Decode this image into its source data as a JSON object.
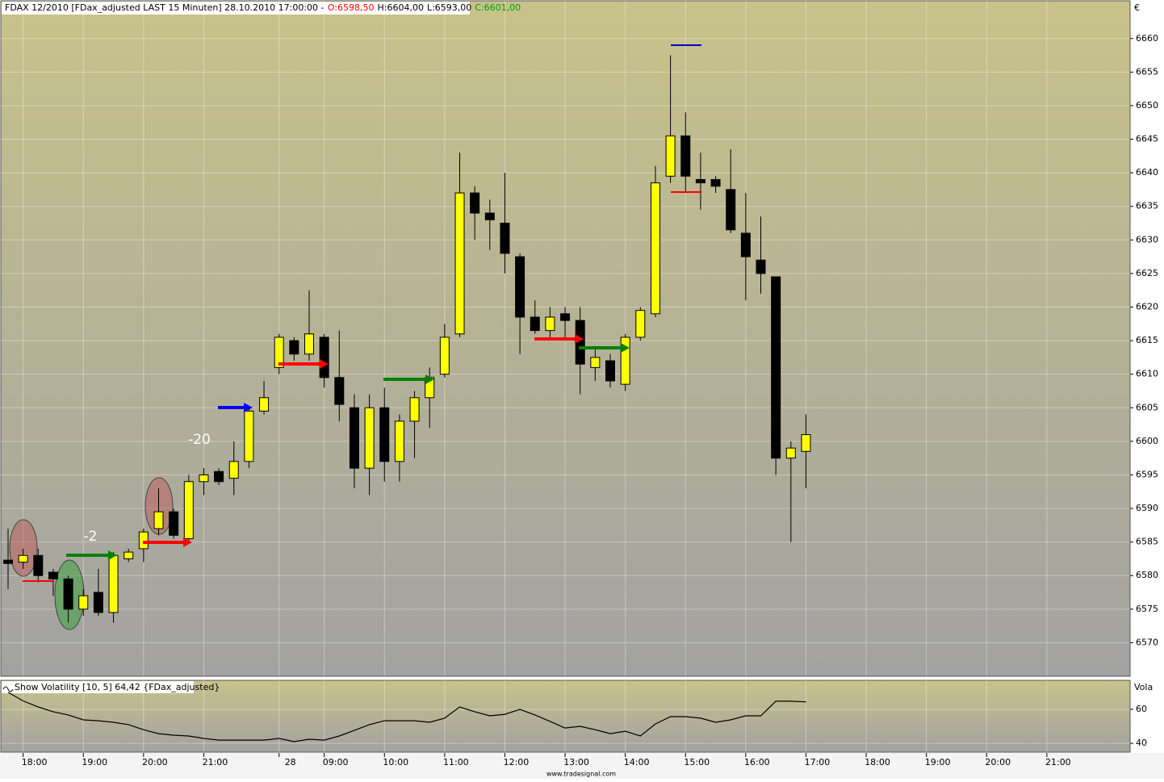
{
  "chart_data": [
    {
      "type": "candlestick",
      "title_parts": [
        "FDAX 12/2010 [FDax_adjusted LAST 15 Minuten] 28.10.2010 17:00:00 -",
        "O:6598,50",
        "H:6604,00",
        "L:6593,00",
        "C:6601,00"
      ],
      "title_colors": [
        "#000000",
        "#ff0000",
        "#000000",
        "#000000",
        "#00a000"
      ],
      "currency": "€",
      "categories": [
        null,
        "18:00",
        null,
        null,
        null,
        "19:00",
        null,
        null,
        null,
        "20:00",
        null,
        null,
        null,
        "21:00",
        null,
        null,
        null,
        null,
        "28",
        null,
        null,
        "09:00",
        null,
        null,
        null,
        "10:00",
        null,
        null,
        null,
        "11:00",
        null,
        null,
        null,
        "12:00",
        null,
        null,
        null,
        "13:00",
        null,
        null,
        null,
        "14:00",
        null,
        null,
        null,
        "15:00",
        null,
        null,
        null,
        "16:00",
        null,
        null,
        null,
        "17:00",
        null,
        null,
        null,
        "18:00",
        null,
        null,
        null,
        "19:00",
        null,
        null,
        null,
        "20:00",
        null,
        null,
        null,
        "21:00",
        null,
        null,
        null,
        null
      ],
      "open": [
        6582.3,
        6582,
        6583,
        6580.5,
        6579.5,
        6575,
        6577.5,
        6574.5,
        6582.5,
        6584,
        6587,
        6589.5,
        6585.5,
        6594,
        6595.5,
        6594.5,
        6597,
        6604.5,
        6611,
        6615,
        6613,
        6615.5,
        6609.5,
        6605,
        6596,
        6605,
        6597,
        6603,
        6606.5,
        6610,
        6616,
        6637,
        6634,
        6632.5,
        6627.5,
        6618.5,
        6616.5,
        6619,
        6618,
        6611,
        6612,
        6608.5,
        6615.5,
        6619,
        6639.5,
        6645.5,
        6639,
        6639,
        6637.5,
        6631,
        6627,
        6624.5,
        6597.5,
        6598.5,
        null,
        null,
        null,
        null,
        null,
        null,
        null,
        null,
        null,
        null,
        null,
        null,
        null,
        null,
        null,
        null,
        null,
        null,
        null,
        null
      ],
      "high": [
        6587,
        6584,
        6584,
        6581,
        6580,
        6578,
        6581,
        6583.5,
        6584,
        6587,
        6593,
        6590,
        6595,
        6596,
        6596,
        6600,
        6605,
        6609,
        6616,
        6615.5,
        6622.5,
        6616,
        6616.5,
        6607,
        6607,
        6608,
        6604,
        6607.5,
        6611,
        6617.5,
        6643,
        6638,
        6636,
        6640,
        6628,
        6621,
        6620,
        6620,
        6620,
        6614,
        6613,
        6616,
        6620,
        6641,
        6657.5,
        6649,
        6643,
        6639.5,
        6643.5,
        6637,
        6633.5,
        6624.5,
        6600,
        6604,
        null,
        null,
        null,
        null,
        null,
        null,
        null,
        null,
        null,
        null,
        null,
        null,
        null,
        null,
        null,
        null,
        null,
        null,
        null,
        null
      ],
      "low": [
        6578,
        6581,
        6579,
        6577,
        6573,
        6574,
        6574,
        6573,
        6582,
        6582,
        6586,
        6585.5,
        6585,
        6592,
        6593.5,
        6592,
        6596,
        6604,
        6610,
        6612,
        6612,
        6608,
        6603,
        6593,
        6592,
        6594,
        6594,
        6597.5,
        6602,
        6609.5,
        6615.5,
        6630,
        6628.5,
        6625,
        6613,
        6616,
        6615.5,
        6615,
        6607,
        6609,
        6608,
        6607.5,
        6615,
        6618.5,
        6638.5,
        6637,
        6634.5,
        6637,
        6631,
        6621,
        6622,
        6595,
        6585,
        6593,
        null,
        null,
        null,
        null,
        null,
        null,
        null,
        null,
        null,
        null,
        null,
        null,
        null,
        null,
        null,
        null,
        null,
        null,
        null,
        null
      ],
      "close": [
        6581.8,
        6583,
        6580,
        6579.5,
        6575,
        6577,
        6574.5,
        6583,
        6583.5,
        6586.5,
        6589.5,
        6586,
        6594,
        6595,
        6594,
        6597,
        6604.5,
        6606.5,
        6615.5,
        6613,
        6616,
        6609.5,
        6605.5,
        6596,
        6605,
        6597,
        6603,
        6606.5,
        6609.5,
        6615.5,
        6637,
        6634,
        6633,
        6628,
        6618.5,
        6616.5,
        6618.5,
        6618,
        6611.5,
        6612.5,
        6609,
        6615.5,
        6619.5,
        6638.5,
        6645.5,
        6639.5,
        6638.5,
        6638,
        6631.5,
        6627.5,
        6625,
        6597.5,
        6599,
        6601,
        null,
        null,
        null,
        null,
        null,
        null,
        null,
        null,
        null,
        null,
        null,
        null,
        null,
        null,
        null,
        null,
        null,
        null,
        null,
        null
      ],
      "up_color": "#ffff00",
      "down_color": "#000000",
      "ylim": [
        6565,
        6665.5
      ],
      "yticks": [
        6570,
        6575,
        6580,
        6585,
        6590,
        6595,
        6600,
        6605,
        6610,
        6615,
        6620,
        6625,
        6630,
        6635,
        6640,
        6645,
        6650,
        6655,
        6660
      ],
      "grid": true,
      "annotations": [
        "-2",
        "-20"
      ]
    },
    {
      "type": "line",
      "title": "Show Volatility [10, 5] 64,42 {FDax_adjusted}",
      "y_label": "Vola",
      "color": "#000000",
      "values": [
        70,
        65,
        61.4,
        58.6,
        56.7,
        53.8,
        53.3,
        52.4,
        51,
        48,
        45.7,
        44.8,
        44.3,
        42.9,
        41.9,
        41.9,
        41.9,
        41.9,
        42.9,
        41,
        42.4,
        41.9,
        44.3,
        47.6,
        51,
        53.3,
        53.3,
        53.3,
        52.4,
        54.8,
        61.4,
        58.6,
        56.2,
        57.1,
        60,
        56.7,
        52.9,
        49,
        50,
        48,
        45.7,
        47.1,
        44.3,
        51.4,
        55.7,
        55.7,
        54.8,
        52.4,
        53.8,
        56.2,
        56.2,
        64.8,
        64.8,
        64.42,
        null,
        null,
        null,
        null,
        null,
        null,
        null,
        null,
        null,
        null,
        null,
        null,
        null,
        null,
        null,
        null,
        null,
        null,
        null,
        null
      ],
      "ylim": [
        34.8,
        77.1
      ],
      "yticks": [
        40,
        60
      ],
      "grid": true
    },
    {
      "footer": "www.tradesignal.com"
    }
  ]
}
